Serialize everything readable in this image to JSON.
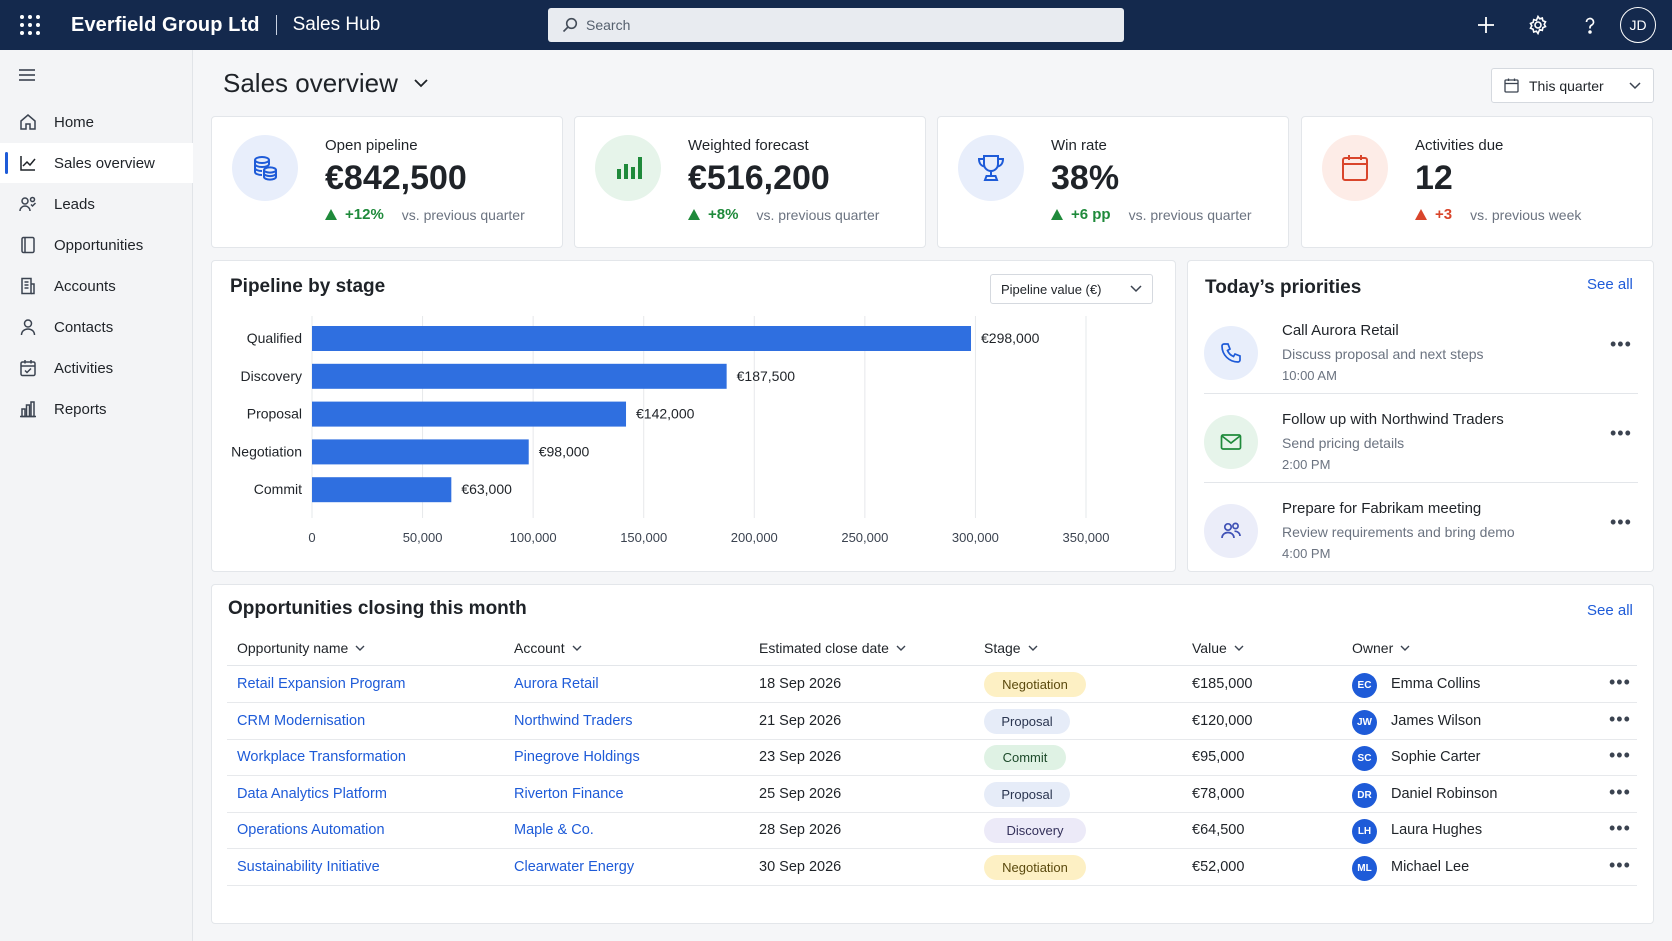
{
  "app": {
    "company": "Everfield Group Ltd",
    "hub": "Sales Hub",
    "user_initials": "JD"
  },
  "search": {
    "placeholder": "Search"
  },
  "sidebar": {
    "items": [
      {
        "label": "Home",
        "icon": "home-icon"
      },
      {
        "label": "Sales overview",
        "icon": "chart-icon",
        "active": true
      },
      {
        "label": "Leads",
        "icon": "leads-icon"
      },
      {
        "label": "Opportunities",
        "icon": "opportunity-icon"
      },
      {
        "label": "Accounts",
        "icon": "building-icon"
      },
      {
        "label": "Contacts",
        "icon": "person-icon"
      },
      {
        "label": "Activities",
        "icon": "calendar-check-icon"
      },
      {
        "label": "Reports",
        "icon": "bar-chart-icon"
      }
    ]
  },
  "page": {
    "title": "Sales overview",
    "period": "This quarter"
  },
  "kpis": [
    {
      "label": "Open pipeline",
      "value": "€842,500",
      "delta": "+12%",
      "compare": "vs. previous quarter",
      "trend": "up",
      "icon": "coins-icon",
      "color": "#1e5bd8",
      "bg": "#e8eefb"
    },
    {
      "label": "Weighted forecast",
      "value": "€516,200",
      "delta": "+8%",
      "compare": "vs. previous quarter",
      "trend": "up",
      "icon": "bar-chart-icon",
      "color": "#1f8a3b",
      "bg": "#e6f4ea"
    },
    {
      "label": "Win rate",
      "value": "38%",
      "delta": "+6 pp",
      "compare": "vs. previous quarter",
      "trend": "up",
      "icon": "trophy-icon",
      "color": "#1e5bd8",
      "bg": "#e8eefb"
    },
    {
      "label": "Activities due",
      "value": "12",
      "delta": "+3",
      "compare": "vs. previous week",
      "trend": "up",
      "icon": "calendar-icon",
      "color": "#d9452b",
      "bg": "#fdece7"
    }
  ],
  "pipeline": {
    "title": "Pipeline by stage",
    "metric": "Pipeline value (€)"
  },
  "chart_data": {
    "type": "bar",
    "orientation": "horizontal",
    "categories": [
      "Qualified",
      "Discovery",
      "Proposal",
      "Negotiation",
      "Commit"
    ],
    "values": [
      298000,
      187500,
      142000,
      98000,
      63000
    ],
    "data_labels": [
      "€298,000",
      "€187,500",
      "€142,000",
      "€98,000",
      "€63,000"
    ],
    "xticks": [
      "0",
      "50,000",
      "100,000",
      "150,000",
      "200,000",
      "250,000",
      "300,000",
      "350,000"
    ],
    "xlim": [
      0,
      350000
    ],
    "grid": true,
    "color": "#2f6fe0"
  },
  "priorities": {
    "title": "Today’s priorities",
    "see_all": "See all",
    "items": [
      {
        "title": "Call Aurora Retail",
        "desc": "Discuss proposal and next steps",
        "time": "10:00 AM",
        "icon": "phone-icon",
        "color": "#1e5bd8",
        "bg": "#e8eefb"
      },
      {
        "title": "Follow up with Northwind Traders",
        "desc": "Send pricing details",
        "time": "2:00 PM",
        "icon": "mail-icon",
        "color": "#1f8a3b",
        "bg": "#e6f4ea"
      },
      {
        "title": "Prepare for Fabrikam meeting",
        "desc": "Review requirements and bring demo",
        "time": "4:00 PM",
        "icon": "people-icon",
        "color": "#3f51b5",
        "bg": "#ebedf9"
      }
    ]
  },
  "opportunities": {
    "title": "Opportunities closing this month",
    "see_all": "See all",
    "columns": [
      "Opportunity name",
      "Account",
      "Estimated close date",
      "Stage",
      "Value",
      "Owner"
    ],
    "rows": [
      {
        "name": "Retail Expansion Program",
        "account": "Aurora Retail",
        "date": "18 Sep 2026",
        "stage": "Negotiation",
        "value": "€185,000",
        "owner": "Emma Collins",
        "initials": "EC"
      },
      {
        "name": "CRM Modernisation",
        "account": "Northwind Traders",
        "date": "21 Sep 2026",
        "stage": "Proposal",
        "value": "€120,000",
        "owner": "James Wilson",
        "initials": "JW"
      },
      {
        "name": "Workplace Transformation",
        "account": "Pinegrove Holdings",
        "date": "23 Sep 2026",
        "stage": "Commit",
        "value": "€95,000",
        "owner": "Sophie Carter",
        "initials": "SC"
      },
      {
        "name": "Data Analytics Platform",
        "account": "Riverton Finance",
        "date": "25 Sep 2026",
        "stage": "Proposal",
        "value": "€78,000",
        "owner": "Daniel Robinson",
        "initials": "DR"
      },
      {
        "name": "Operations Automation",
        "account": "Maple & Co.",
        "date": "28 Sep 2026",
        "stage": "Discovery",
        "value": "€64,500",
        "owner": "Laura Hughes",
        "initials": "LH"
      },
      {
        "name": "Sustainability Initiative",
        "account": "Clearwater Energy",
        "date": "30 Sep 2026",
        "stage": "Negotiation",
        "value": "€52,000",
        "owner": "Michael Lee",
        "initials": "ML"
      }
    ]
  },
  "stage_colors": {
    "Negotiation": {
      "bg": "#fdf0c4",
      "fg": "#5b4a0e"
    },
    "Proposal": {
      "bg": "#e6ecf8",
      "fg": "#2a3550"
    },
    "Commit": {
      "bg": "#dff2e4",
      "fg": "#1d4a2a"
    },
    "Discovery": {
      "bg": "#eceaf8",
      "fg": "#33305a"
    }
  }
}
